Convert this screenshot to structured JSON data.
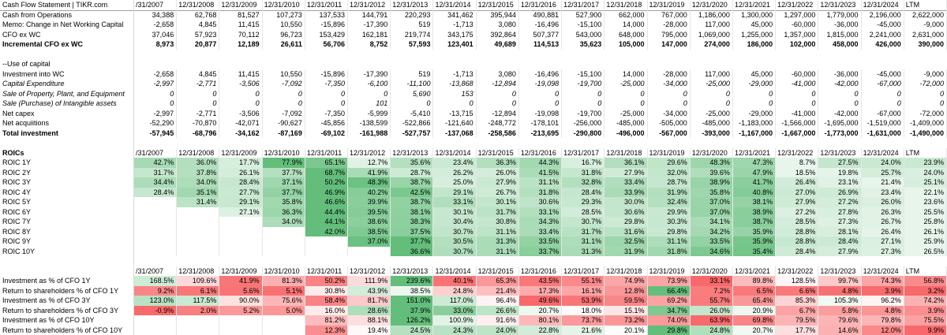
{
  "columns": [
    "/31/2007",
    "12/31/2008",
    "12/31/2009",
    "12/31/2010",
    "12/31/2011",
    "12/31/2012",
    "12/31/2013",
    "12/31/2014",
    "12/31/2015",
    "12/31/2016",
    "12/31/2017",
    "12/31/2018",
    "12/31/2019",
    "12/31/2020",
    "12/31/2021",
    "12/31/2022",
    "12/31/2023",
    "12/31/2024",
    "LTM"
  ],
  "header_rows": [
    {
      "label": "Cash Flow Statement | TIKR.com",
      "style": "title",
      "values": [
        "/31/2007",
        "12/31/2008",
        "12/31/2009",
        "12/31/2010",
        "12/31/2011",
        "12/31/2012",
        "12/31/2013",
        "12/31/2014",
        "12/31/2015",
        "12/31/2016",
        "12/31/2017",
        "12/31/2018",
        "12/31/2019",
        "12/31/2020",
        "12/31/2021",
        "12/31/2022",
        "12/31/2023",
        "12/31/2024",
        "LTM"
      ]
    }
  ],
  "sections": [
    {
      "top": 1,
      "rows": [
        {
          "label": "Cash from Operations",
          "values": [
            "34,388",
            "62,768",
            "81,527",
            "107,273",
            "137,533",
            "144,791",
            "220,293",
            "341,462",
            "395,944",
            "490,881",
            "527,900",
            "662,000",
            "767,000",
            "1,186,000",
            "1,300,000",
            "1,297,000",
            "1,779,000",
            "2,196,000",
            "2,622,000"
          ]
        },
        {
          "label": "Memo: Change in Net Working Capital",
          "values": [
            "-2,658",
            "4,845",
            "11,415",
            "10,550",
            "-15,896",
            "-17,390",
            "519",
            "-1,713",
            "3,080",
            "-16,496",
            "-15,100",
            "14,000",
            "-28,000",
            "117,000",
            "45,000",
            "-60,000",
            "-36,000",
            "-45,000",
            "-9,000"
          ]
        },
        {
          "label": "CFO ex WC",
          "values": [
            "37,046",
            "57,923",
            "70,112",
            "96,723",
            "153,429",
            "162,181",
            "219,774",
            "343,175",
            "392,864",
            "507,377",
            "543,000",
            "648,000",
            "795,000",
            "1,069,000",
            "1,255,000",
            "1,357,000",
            "1,815,000",
            "2,241,000",
            "2,631,000"
          ]
        },
        {
          "label": "Incremental CFO ex WC",
          "style": "bold",
          "values": [
            "8,973",
            "20,877",
            "12,189",
            "26,611",
            "56,706",
            "8,752",
            "57,593",
            "123,401",
            "49,689",
            "114,513",
            "35,623",
            "105,000",
            "147,000",
            "274,000",
            "186,000",
            "102,000",
            "458,000",
            "426,000",
            "390,000"
          ]
        },
        {
          "label": "",
          "values": []
        },
        {
          "label": "--Use of capital",
          "values": []
        },
        {
          "label": "Investment into WC",
          "values": [
            "-2,658",
            "4,845",
            "11,415",
            "10,550",
            "-15,896",
            "-17,390",
            "519",
            "-1,713",
            "3,080",
            "-16,496",
            "-15,100",
            "14,000",
            "-28,000",
            "117,000",
            "45,000",
            "-60,000",
            "-36,000",
            "-45,000",
            "-9,000"
          ]
        },
        {
          "label": "Capital Expenditure",
          "style": "italic",
          "values": [
            "-2,997",
            "-2,771",
            "-3,506",
            "-7,092",
            "-7,350",
            "-6,100",
            "-11,100",
            "-13,868",
            "-12,894",
            "-19,098",
            "-19,700",
            "-25,000",
            "-34,000",
            "-25,000",
            "-29,000",
            "-41,000",
            "-42,000",
            "-67,000",
            "-72,000"
          ]
        },
        {
          "label": "Sale of Property, Plant, and Equipment",
          "style": "italic",
          "values": [
            "0",
            "0",
            "0",
            "0",
            "0",
            "0",
            "5,690",
            "153",
            "0",
            "0",
            "0",
            "0",
            "0",
            "0",
            "0",
            "0",
            "0",
            "0",
            "0"
          ]
        },
        {
          "label": "Sale (Purchase) of Intangible assets",
          "style": "italic",
          "values": [
            "0",
            "0",
            "0",
            "0",
            "0",
            "101",
            "0",
            "0",
            "0",
            "0",
            "0",
            "0",
            "0",
            "0",
            "0",
            "0",
            "0",
            "0",
            "0"
          ]
        },
        {
          "label": "Net capex",
          "values": [
            "-2,997",
            "-2,771",
            "-3,506",
            "-7,092",
            "-7,350",
            "-5,999",
            "-5,410",
            "-13,715",
            "-12,894",
            "-19,098",
            "-19,700",
            "-25,000",
            "-34,000",
            "-25,000",
            "-29,000",
            "-41,000",
            "-42,000",
            "-67,000",
            "-72,000"
          ]
        },
        {
          "label": "Net acquiitions",
          "values": [
            "-52,290",
            "-70,870",
            "-42,071",
            "-90,627",
            "-45,856",
            "-138,599",
            "-522,866",
            "-121,640",
            "-248,772",
            "-178,101",
            "-256,000",
            "-485,000",
            "-505,000",
            "-485,000",
            "-1,183,000",
            "-1,566,000",
            "-1,695,000",
            "-1,519,000",
            "-1,409,000"
          ]
        },
        {
          "label": "Total investment",
          "style": "bold",
          "values": [
            "-57,945",
            "-68,796",
            "-34,162",
            "-87,169",
            "-69,102",
            "-161,988",
            "-527,757",
            "-137,068",
            "-258,586",
            "-213,695",
            "-290,800",
            "-496,000",
            "-567,000",
            "-393,000",
            "-1,167,000",
            "-1,667,000",
            "-1,773,000",
            "-1,631,000",
            "-1,490,000"
          ]
        },
        {
          "label": "",
          "values": []
        },
        {
          "label": "ROICs",
          "style": "bold-date",
          "values": [
            "/31/2007",
            "12/31/2008",
            "12/31/2009",
            "12/31/2010",
            "12/31/2011",
            "12/31/2012",
            "12/31/2013",
            "12/31/2014",
            "12/31/2015",
            "12/31/2016",
            "12/31/2017",
            "12/31/2018",
            "12/31/2019",
            "12/31/2020",
            "12/31/2021",
            "12/31/2022",
            "12/31/2023",
            "12/31/2024",
            "LTM"
          ]
        },
        {
          "label": "ROIC 1Y",
          "heat": "green",
          "values": [
            "42.7%",
            "36.0%",
            "17.7%",
            "77.9%",
            "65.1%",
            "12.7%",
            "35.6%",
            "23.4%",
            "36.3%",
            "44.3%",
            "16.7%",
            "36.1%",
            "29.6%",
            "48.3%",
            "47.3%",
            "8.7%",
            "27.5%",
            "24.0%",
            "23.9%"
          ]
        },
        {
          "label": "ROIC 2Y",
          "heat": "green",
          "values": [
            "31.7%",
            "37.8%",
            "26.1%",
            "37.7%",
            "68.7%",
            "41.9%",
            "28.7%",
            "26.2%",
            "26.0%",
            "41.5%",
            "31.8%",
            "27.9%",
            "32.0%",
            "39.6%",
            "47.9%",
            "18.5%",
            "19.8%",
            "25.7%",
            "24.0%"
          ]
        },
        {
          "label": "ROIC 3Y",
          "heat": "green",
          "values": [
            "34.4%",
            "34.0%",
            "28.4%",
            "37.1%",
            "50.2%",
            "48.3%",
            "38.7%",
            "25.0%",
            "27.9%",
            "31.1%",
            "32.8%",
            "33.4%",
            "28.7%",
            "38.9%",
            "41.7%",
            "26.4%",
            "23.1%",
            "21.4%",
            "25.1%"
          ]
        },
        {
          "label": "ROIC 4Y",
          "heat": "green",
          "values": [
            "28.4%",
            "35.1%",
            "27.7%",
            "37.7%",
            "46.9%",
            "40.2%",
            "42.5%",
            "29.1%",
            "26.7%",
            "31.8%",
            "28.4%",
            "33.9%",
            "31.9%",
            "35.8%",
            "40.8%",
            "27.0%",
            "26.9%",
            "23.4%",
            "22.1%"
          ]
        },
        {
          "label": "ROIC 5Y",
          "heat": "green",
          "values": [
            "",
            "31.4%",
            "29.1%",
            "35.8%",
            "46.6%",
            "39.9%",
            "38.7%",
            "33.1%",
            "30.1%",
            "30.6%",
            "29.3%",
            "30.0%",
            "32.4%",
            "37.0%",
            "38.1%",
            "27.9%",
            "27.2%",
            "26.0%",
            "23.6%"
          ]
        },
        {
          "label": "ROIC 6Y",
          "heat": "green",
          "values": [
            "",
            "",
            "27.1%",
            "36.3%",
            "44.4%",
            "39.5%",
            "38.1%",
            "30.1%",
            "31.7%",
            "33.1%",
            "28.5%",
            "30.6%",
            "29.9%",
            "37.0%",
            "38.9%",
            "27.2%",
            "27.8%",
            "26.3%",
            "25.5%"
          ]
        },
        {
          "label": "ROIC 7Y",
          "heat": "green",
          "values": [
            "",
            "",
            "",
            "34.0%",
            "44.1%",
            "38.6%",
            "38.3%",
            "30.4%",
            "30.8%",
            "34.3%",
            "30.7%",
            "29.8%",
            "30.3%",
            "34.1%",
            "38.7%",
            "28.5%",
            "27.3%",
            "26.7%",
            "25.8%"
          ]
        },
        {
          "label": "ROIC 8Y",
          "heat": "green",
          "values": [
            "",
            "",
            "",
            "",
            "42.0%",
            "38.5%",
            "37.5%",
            "30.7%",
            "31.1%",
            "33.4%",
            "31.7%",
            "31.6%",
            "29.8%",
            "34.2%",
            "35.9%",
            "28.8%",
            "28.1%",
            "26.4%",
            "26.1%"
          ]
        },
        {
          "label": "ROIC 9Y",
          "heat": "green",
          "values": [
            "",
            "",
            "",
            "",
            "",
            "37.0%",
            "37.7%",
            "30.5%",
            "31.3%",
            "33.5%",
            "31.1%",
            "32.5%",
            "31.1%",
            "33.5%",
            "35.9%",
            "28.8%",
            "28.4%",
            "27.1%",
            "25.9%"
          ]
        },
        {
          "label": "ROIC 10Y",
          "heat": "green",
          "values": [
            "",
            "",
            "",
            "",
            "",
            "",
            "36.6%",
            "30.7%",
            "31.1%",
            "33.7%",
            "31.3%",
            "31.9%",
            "31.8%",
            "34.6%",
            "35.4%",
            "28.4%",
            "27.9%",
            "27.3%",
            "26.5%"
          ]
        },
        {
          "label": "",
          "values": []
        },
        {
          "label": "",
          "style": "date",
          "values": [
            "/31/2007",
            "12/31/2008",
            "12/31/2009",
            "12/31/2010",
            "12/31/2011",
            "12/31/2012",
            "12/31/2013",
            "12/31/2014",
            "12/31/2015",
            "12/31/2016",
            "12/31/2017",
            "12/31/2018",
            "12/31/2019",
            "12/31/2020",
            "12/31/2021",
            "12/31/2022",
            "12/31/2023",
            "12/31/2024",
            "LTM"
          ]
        },
        {
          "label": "Investment as % of CFO 1Y",
          "heat": "div",
          "values": [
            "168.5%",
            "109.6%",
            "41.9%",
            "81.3%",
            "50.2%",
            "111.9%",
            "239.6%",
            "40.1%",
            "65.3%",
            "43.5%",
            "55.1%",
            "74.9%",
            "73.9%",
            "33.1%",
            "89.8%",
            "128.5%",
            "99.7%",
            "74.3%",
            "56.8%"
          ]
        },
        {
          "label": "Return to shareholders % of CFO 1Y",
          "heat": "div2",
          "values": [
            "9.2%",
            "6.1%",
            "5.6%",
            "5.1%",
            "30.8%",
            "43.9%",
            "38.5%",
            "24.8%",
            "21.4%",
            "17.3%",
            "16.1%",
            "12.8%",
            "66.4%",
            "7.2%",
            "6.5%",
            "6.6%",
            "4.8%",
            "3.9%",
            "3.2%"
          ]
        },
        {
          "label": "Investment as % of CFO 3Y",
          "heat": "div",
          "values": [
            "123.0%",
            "117.5%",
            "90.0%",
            "75.6%",
            "58.4%",
            "81.7%",
            "151.0%",
            "117.0%",
            "96.4%",
            "49.6%",
            "53.9%",
            "59.5%",
            "69.2%",
            "55.7%",
            "65.4%",
            "85.3%",
            "105.3%",
            "96.2%",
            "74.2%"
          ]
        },
        {
          "label": "Return to shareholders % of CFO 3Y",
          "heat": "div2",
          "values": [
            "-0.9%",
            "2.0%",
            "5.2%",
            "5.0%",
            "16.0%",
            "28.6%",
            "37.9%",
            "33.0%",
            "26.6%",
            "20.7%",
            "18.0%",
            "15.1%",
            "34.7%",
            "26.0%",
            "20.9%",
            "6.7%",
            "5.8%",
            "4.8%",
            "3.9%"
          ]
        },
        {
          "label": "Investment as % of CFO 10Y",
          "heat": "div",
          "values": [
            "",
            "",
            "",
            "",
            "81.2%",
            "88.1%",
            "126.2%",
            "100.9%",
            "91.6%",
            "80.1%",
            "73.7%",
            "73.2%",
            "74.0%",
            "63.9%",
            "69.8%",
            "79.5%",
            "79.6%",
            "79.8%",
            "75.5%"
          ]
        },
        {
          "label": "Return to shareholders % of CFO 10Y",
          "heat": "div2",
          "values": [
            "",
            "",
            "",
            "",
            "12.3%",
            "19.4%",
            "24.5%",
            "24.3%",
            "24.0%",
            "22.8%",
            "21.6%",
            "20.1%",
            "29.8%",
            "24.8%",
            "20.7%",
            "17.7%",
            "14.6%",
            "12.0%",
            "9.9%"
          ]
        }
      ]
    }
  ],
  "colors": {
    "green_strong": "#63be7b",
    "green_light": "#e3f4e8",
    "red_strong": "#f8696b",
    "red_light": "#fde5e6",
    "white": "#ffffff"
  }
}
